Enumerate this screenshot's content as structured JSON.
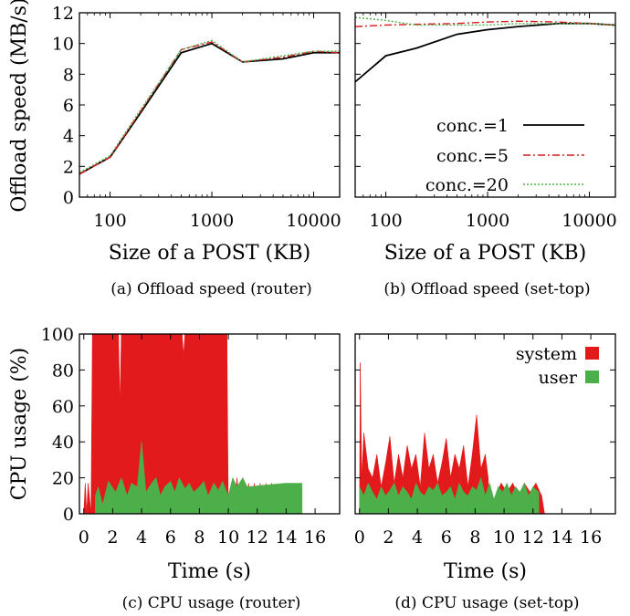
{
  "chart_data": [
    {
      "id": "a",
      "type": "line",
      "caption": "(a) Offload speed (router)",
      "title": "",
      "xlabel": "Size of a POST (KB)",
      "ylabel": "Offload speed (MB/s)",
      "xscale": "log",
      "xlim": [
        50,
        18000
      ],
      "ylim": [
        0,
        12
      ],
      "xticks": [
        100,
        1000,
        10000
      ],
      "xtick_labels": [
        "100",
        "1000",
        "10000"
      ],
      "yticks": [
        0,
        2,
        4,
        6,
        8,
        10,
        12
      ],
      "ytick_labels": [
        "0",
        "2",
        "4",
        "6",
        "8",
        "10",
        "12"
      ],
      "grid": false,
      "legend": "none",
      "series": [
        {
          "name": "conc.=1",
          "color": "#000000",
          "dash": "solid",
          "x": [
            50,
            100,
            200,
            500,
            1000,
            2000,
            5000,
            10000,
            18000
          ],
          "y": [
            1.5,
            2.6,
            5.5,
            9.4,
            10.0,
            8.8,
            9.0,
            9.4,
            9.4
          ]
        },
        {
          "name": "conc.=5",
          "color": "#d7191c",
          "dash": "dashdot",
          "x": [
            50,
            100,
            200,
            500,
            1000,
            2000,
            5000,
            10000,
            18000
          ],
          "y": [
            1.5,
            2.6,
            5.6,
            9.6,
            10.1,
            8.8,
            9.1,
            9.5,
            9.4
          ]
        },
        {
          "name": "conc.=20",
          "color": "#4daf4a",
          "dash": "dotted",
          "x": [
            50,
            100,
            200,
            500,
            1000,
            2000,
            5000,
            10000,
            18000
          ],
          "y": [
            1.6,
            2.7,
            5.7,
            9.6,
            10.2,
            8.8,
            9.2,
            9.5,
            9.5
          ]
        }
      ]
    },
    {
      "id": "b",
      "type": "line",
      "caption": "(b) Offload speed (set-top)",
      "title": "",
      "xlabel": "Size of a POST (KB)",
      "ylabel": "",
      "xscale": "log",
      "xlim": [
        50,
        18000
      ],
      "ylim": [
        0,
        12
      ],
      "xticks": [
        100,
        1000,
        10000
      ],
      "xtick_labels": [
        "100",
        "1000",
        "10000"
      ],
      "yticks": [
        0,
        2,
        4,
        6,
        8,
        10,
        12
      ],
      "ytick_labels": [],
      "grid": false,
      "legend": "center-right",
      "series": [
        {
          "name": "conc.=1",
          "color": "#000000",
          "dash": "solid",
          "x": [
            50,
            100,
            200,
            500,
            1000,
            2000,
            5000,
            10000,
            18000
          ],
          "y": [
            7.5,
            9.2,
            9.7,
            10.6,
            10.9,
            11.1,
            11.3,
            11.3,
            11.2
          ]
        },
        {
          "name": "conc.=5",
          "color": "#d7191c",
          "dash": "dashdot",
          "x": [
            50,
            100,
            200,
            500,
            1000,
            2000,
            5000,
            10000,
            18000
          ],
          "y": [
            11.1,
            11.2,
            11.25,
            11.3,
            11.4,
            11.45,
            11.4,
            11.3,
            11.2
          ]
        },
        {
          "name": "conc.=20",
          "color": "#4daf4a",
          "dash": "dotted",
          "x": [
            50,
            100,
            200,
            500,
            1000,
            2000,
            5000,
            10000,
            18000
          ],
          "y": [
            11.7,
            11.5,
            11.2,
            11.2,
            11.2,
            11.3,
            11.3,
            11.3,
            11.2
          ]
        }
      ]
    },
    {
      "id": "c",
      "type": "area",
      "caption": "(c) CPU usage (router)",
      "title": "",
      "xlabel": "Time (s)",
      "ylabel": "CPU usage (%)",
      "xlim": [
        -0.3,
        17.7
      ],
      "ylim": [
        0,
        100
      ],
      "xticks": [
        0,
        2,
        4,
        6,
        8,
        10,
        12,
        14,
        16
      ],
      "xtick_labels": [
        "0",
        "2",
        "4",
        "6",
        "8",
        "10",
        "12",
        "14",
        "16"
      ],
      "yticks": [
        0,
        20,
        40,
        60,
        80,
        100
      ],
      "ytick_labels": [
        "0",
        "20",
        "40",
        "60",
        "80",
        "100"
      ],
      "grid": false,
      "legend": "none",
      "series": [
        {
          "name": "system",
          "color": "#e31a1c",
          "x": [
            0.0,
            0.1,
            0.2,
            0.3,
            0.5,
            0.6,
            0.7,
            1.0,
            2.0,
            2.4,
            2.5,
            2.6,
            3.0,
            4.0,
            5.0,
            6.0,
            6.8,
            6.9,
            7.0,
            8.0,
            9.0,
            9.9,
            10.0,
            10.2,
            10.4,
            10.6,
            10.8,
            11.0,
            11.2,
            11.4,
            11.6,
            11.8,
            12.0,
            12.2,
            12.4,
            12.6,
            12.8,
            13.0,
            13.3
          ],
          "y": [
            0,
            17,
            0,
            17,
            0,
            100,
            100,
            100,
            100,
            100,
            60,
            100,
            100,
            100,
            100,
            100,
            100,
            88,
            100,
            100,
            100,
            100,
            0,
            17,
            0,
            20,
            0,
            17,
            0,
            17,
            0,
            17,
            0,
            17,
            0,
            17,
            0,
            17,
            0
          ]
        },
        {
          "name": "user",
          "color": "#4daf4a",
          "x": [
            0.8,
            1.0,
            1.3,
            1.7,
            2.2,
            2.6,
            3.0,
            3.3,
            3.7,
            4.0,
            4.3,
            4.7,
            5.0,
            5.3,
            5.6,
            6.0,
            6.3,
            6.6,
            7.0,
            7.3,
            7.6,
            8.0,
            8.3,
            8.6,
            9.0,
            9.3,
            9.6,
            10.0,
            10.3,
            10.6,
            11.0,
            11.3,
            14.0,
            15.1
          ],
          "y": [
            10,
            15,
            5,
            18,
            12,
            20,
            10,
            17,
            15,
            40,
            12,
            17,
            20,
            10,
            15,
            18,
            12,
            20,
            14,
            17,
            12,
            15,
            18,
            10,
            17,
            13,
            18,
            10,
            20,
            15,
            20,
            15,
            17,
            17
          ]
        }
      ]
    },
    {
      "id": "d",
      "type": "area",
      "caption": "(d) CPU usage (set-top)",
      "title": "",
      "xlabel": "Time (s)",
      "ylabel": "",
      "xlim": [
        -0.3,
        17.7
      ],
      "ylim": [
        0,
        100
      ],
      "xticks": [
        0,
        2,
        4,
        6,
        8,
        10,
        12,
        14,
        16
      ],
      "xtick_labels": [
        "0",
        "2",
        "4",
        "6",
        "8",
        "10",
        "12",
        "14",
        "16"
      ],
      "yticks": [
        0,
        20,
        40,
        60,
        80,
        100
      ],
      "ytick_labels": [],
      "grid": false,
      "legend": "top-right",
      "series": [
        {
          "name": "system",
          "color": "#e31a1c",
          "x": [
            0.0,
            0.05,
            0.15,
            0.3,
            0.6,
            0.9,
            1.2,
            1.5,
            1.8,
            2.1,
            2.4,
            2.7,
            3.0,
            3.3,
            3.6,
            3.9,
            4.2,
            4.5,
            4.8,
            5.1,
            5.4,
            5.7,
            6.0,
            6.3,
            6.6,
            6.9,
            7.2,
            7.5,
            7.8,
            8.1,
            8.4,
            8.7,
            8.9,
            9.0,
            9.4,
            9.8,
            10.2,
            10.6,
            11.0,
            11.4,
            11.8,
            12.2,
            12.6,
            12.8
          ],
          "y": [
            0,
            84,
            20,
            45,
            25,
            20,
            33,
            15,
            28,
            43,
            17,
            33,
            20,
            38,
            25,
            33,
            15,
            45,
            25,
            33,
            17,
            28,
            42,
            20,
            33,
            25,
            38,
            15,
            33,
            55,
            25,
            33,
            20,
            0,
            10,
            17,
            12,
            17,
            10,
            17,
            12,
            17,
            10,
            0
          ]
        },
        {
          "name": "user",
          "color": "#4daf4a",
          "x": [
            0.0,
            0.3,
            0.6,
            0.9,
            1.2,
            1.5,
            1.8,
            2.1,
            2.4,
            2.7,
            3.0,
            3.3,
            3.6,
            3.9,
            4.2,
            4.5,
            4.8,
            5.1,
            5.4,
            5.7,
            6.0,
            6.3,
            6.6,
            6.9,
            7.2,
            7.5,
            7.8,
            8.1,
            8.4,
            8.7,
            9.0,
            9.3,
            9.6,
            9.9,
            10.2,
            10.5,
            10.8,
            11.1,
            11.4,
            11.7,
            12.0,
            12.4
          ],
          "y": [
            15,
            10,
            17,
            12,
            8,
            15,
            10,
            13,
            17,
            10,
            15,
            12,
            8,
            17,
            12,
            10,
            15,
            13,
            17,
            10,
            12,
            15,
            8,
            17,
            12,
            10,
            15,
            13,
            20,
            10,
            17,
            8,
            15,
            12,
            17,
            10,
            15,
            12,
            17,
            10,
            15,
            12
          ]
        }
      ]
    }
  ]
}
